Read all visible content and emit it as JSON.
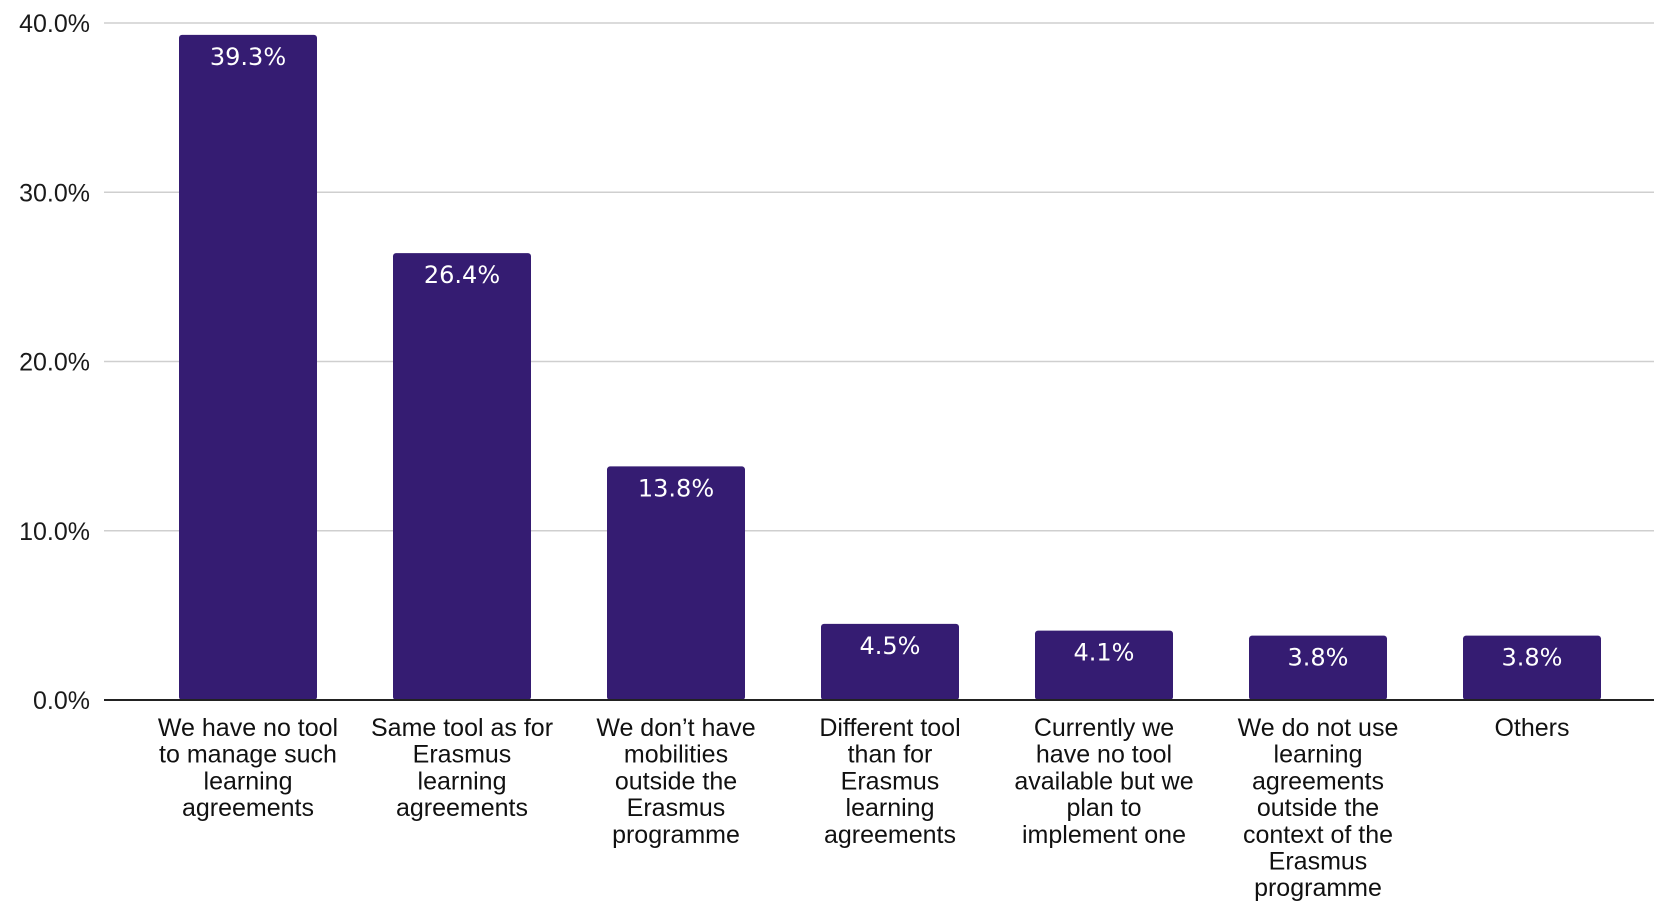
{
  "chart_data": {
    "type": "bar",
    "categories": [
      "We have no tool to manage such learning agreements",
      "Same tool as for Erasmus learning agreements",
      "We don’t have mobilities outside the Erasmus programme",
      "Different tool than for Erasmus learning agreements",
      "Currently we have no tool available but we plan to implement one",
      "We do not use learning agreements outside the context of the Erasmus programme",
      "Others"
    ],
    "category_lines": [
      [
        "We have no tool",
        "to manage such",
        "learning",
        "agreements"
      ],
      [
        "Same tool as for",
        "Erasmus",
        "learning",
        "agreements"
      ],
      [
        "We don’t have",
        "mobilities",
        "outside the",
        "Erasmus",
        "programme"
      ],
      [
        "Different tool",
        "than for",
        "Erasmus",
        "learning",
        "agreements"
      ],
      [
        "Currently we",
        "have no tool",
        "available but we",
        "plan to",
        "implement one"
      ],
      [
        "We do not use",
        "learning",
        "agreements",
        "outside the",
        "context of the",
        "Erasmus",
        "programme"
      ],
      [
        "Others"
      ]
    ],
    "values": [
      39.3,
      26.4,
      13.8,
      4.5,
      4.1,
      3.8,
      3.8
    ],
    "value_labels": [
      "39.3%",
      "26.4%",
      "13.8%",
      "4.5%",
      "4.1%",
      "3.8%",
      "3.8%"
    ],
    "yticks": [
      0,
      10,
      20,
      30,
      40
    ],
    "ytick_labels": [
      "0.0%",
      "10.0%",
      "20.0%",
      "30.0%",
      "40.0%"
    ],
    "ylim": [
      0,
      40
    ],
    "grid": true,
    "title": "",
    "xlabel": "",
    "ylabel": "",
    "colors": {
      "bar": "#351c72",
      "data_label": "#ffffff",
      "grid": "#cfcfcf",
      "axis": "#222222"
    }
  }
}
